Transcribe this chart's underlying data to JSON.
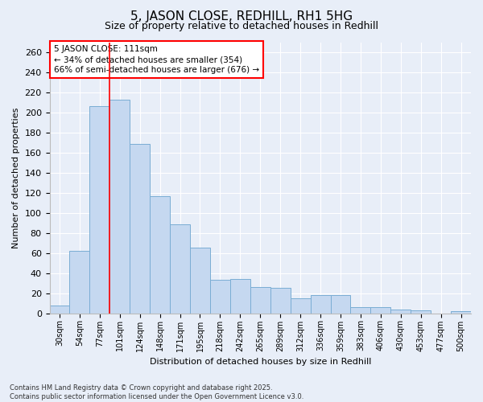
{
  "title": "5, JASON CLOSE, REDHILL, RH1 5HG",
  "subtitle": "Size of property relative to detached houses in Redhill",
  "xlabel": "Distribution of detached houses by size in Redhill",
  "ylabel": "Number of detached properties",
  "categories": [
    "30sqm",
    "54sqm",
    "77sqm",
    "101sqm",
    "124sqm",
    "148sqm",
    "171sqm",
    "195sqm",
    "218sqm",
    "242sqm",
    "265sqm",
    "289sqm",
    "312sqm",
    "336sqm",
    "359sqm",
    "383sqm",
    "406sqm",
    "430sqm",
    "453sqm",
    "477sqm",
    "500sqm"
  ],
  "values": [
    8,
    62,
    206,
    213,
    169,
    117,
    89,
    65,
    33,
    34,
    26,
    25,
    15,
    18,
    18,
    6,
    6,
    4,
    3,
    0,
    2
  ],
  "bar_color": "#c5d8f0",
  "bar_edge_color": "#7aadd4",
  "background_color": "#e8eef8",
  "red_line_index": 3,
  "annotation_title": "5 JASON CLOSE: 111sqm",
  "annotation_line1": "← 34% of detached houses are smaller (354)",
  "annotation_line2": "66% of semi-detached houses are larger (676) →",
  "footer_line1": "Contains HM Land Registry data © Crown copyright and database right 2025.",
  "footer_line2": "Contains public sector information licensed under the Open Government Licence v3.0.",
  "ylim": [
    0,
    270
  ],
  "yticks": [
    0,
    20,
    40,
    60,
    80,
    100,
    120,
    140,
    160,
    180,
    200,
    220,
    240,
    260
  ]
}
